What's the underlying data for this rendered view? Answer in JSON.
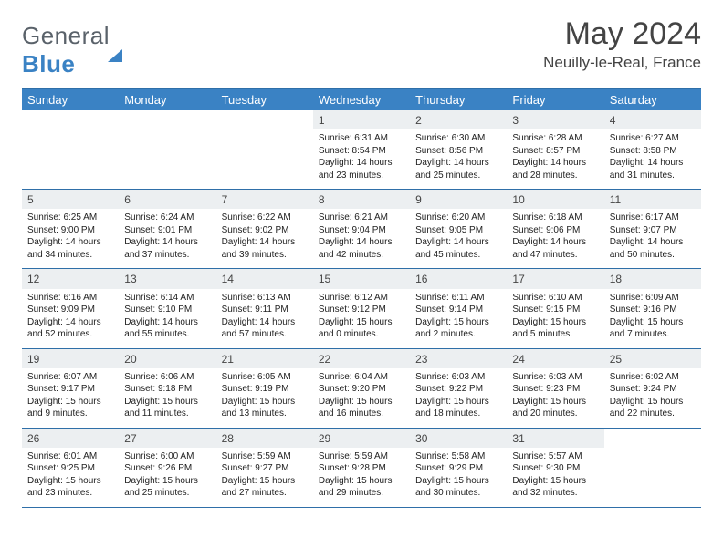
{
  "brand": {
    "part1": "General",
    "part2": "Blue"
  },
  "title": "May 2024",
  "location": "Neuilly-le-Real, France",
  "dayHeaders": [
    "Sunday",
    "Monday",
    "Tuesday",
    "Wednesday",
    "Thursday",
    "Friday",
    "Saturday"
  ],
  "colors": {
    "headerBg": "#3a82c4",
    "borderBlue": "#2f6fa8",
    "dayNumBg": "#eceff1"
  },
  "weeks": [
    [
      {
        "empty": true
      },
      {
        "empty": true
      },
      {
        "empty": true
      },
      {
        "n": "1",
        "sr": "6:31 AM",
        "ss": "8:54 PM",
        "dl": "14 hours and 23 minutes."
      },
      {
        "n": "2",
        "sr": "6:30 AM",
        "ss": "8:56 PM",
        "dl": "14 hours and 25 minutes."
      },
      {
        "n": "3",
        "sr": "6:28 AM",
        "ss": "8:57 PM",
        "dl": "14 hours and 28 minutes."
      },
      {
        "n": "4",
        "sr": "6:27 AM",
        "ss": "8:58 PM",
        "dl": "14 hours and 31 minutes."
      }
    ],
    [
      {
        "n": "5",
        "sr": "6:25 AM",
        "ss": "9:00 PM",
        "dl": "14 hours and 34 minutes."
      },
      {
        "n": "6",
        "sr": "6:24 AM",
        "ss": "9:01 PM",
        "dl": "14 hours and 37 minutes."
      },
      {
        "n": "7",
        "sr": "6:22 AM",
        "ss": "9:02 PM",
        "dl": "14 hours and 39 minutes."
      },
      {
        "n": "8",
        "sr": "6:21 AM",
        "ss": "9:04 PM",
        "dl": "14 hours and 42 minutes."
      },
      {
        "n": "9",
        "sr": "6:20 AM",
        "ss": "9:05 PM",
        "dl": "14 hours and 45 minutes."
      },
      {
        "n": "10",
        "sr": "6:18 AM",
        "ss": "9:06 PM",
        "dl": "14 hours and 47 minutes."
      },
      {
        "n": "11",
        "sr": "6:17 AM",
        "ss": "9:07 PM",
        "dl": "14 hours and 50 minutes."
      }
    ],
    [
      {
        "n": "12",
        "sr": "6:16 AM",
        "ss": "9:09 PM",
        "dl": "14 hours and 52 minutes."
      },
      {
        "n": "13",
        "sr": "6:14 AM",
        "ss": "9:10 PM",
        "dl": "14 hours and 55 minutes."
      },
      {
        "n": "14",
        "sr": "6:13 AM",
        "ss": "9:11 PM",
        "dl": "14 hours and 57 minutes."
      },
      {
        "n": "15",
        "sr": "6:12 AM",
        "ss": "9:12 PM",
        "dl": "15 hours and 0 minutes."
      },
      {
        "n": "16",
        "sr": "6:11 AM",
        "ss": "9:14 PM",
        "dl": "15 hours and 2 minutes."
      },
      {
        "n": "17",
        "sr": "6:10 AM",
        "ss": "9:15 PM",
        "dl": "15 hours and 5 minutes."
      },
      {
        "n": "18",
        "sr": "6:09 AM",
        "ss": "9:16 PM",
        "dl": "15 hours and 7 minutes."
      }
    ],
    [
      {
        "n": "19",
        "sr": "6:07 AM",
        "ss": "9:17 PM",
        "dl": "15 hours and 9 minutes."
      },
      {
        "n": "20",
        "sr": "6:06 AM",
        "ss": "9:18 PM",
        "dl": "15 hours and 11 minutes."
      },
      {
        "n": "21",
        "sr": "6:05 AM",
        "ss": "9:19 PM",
        "dl": "15 hours and 13 minutes."
      },
      {
        "n": "22",
        "sr": "6:04 AM",
        "ss": "9:20 PM",
        "dl": "15 hours and 16 minutes."
      },
      {
        "n": "23",
        "sr": "6:03 AM",
        "ss": "9:22 PM",
        "dl": "15 hours and 18 minutes."
      },
      {
        "n": "24",
        "sr": "6:03 AM",
        "ss": "9:23 PM",
        "dl": "15 hours and 20 minutes."
      },
      {
        "n": "25",
        "sr": "6:02 AM",
        "ss": "9:24 PM",
        "dl": "15 hours and 22 minutes."
      }
    ],
    [
      {
        "n": "26",
        "sr": "6:01 AM",
        "ss": "9:25 PM",
        "dl": "15 hours and 23 minutes."
      },
      {
        "n": "27",
        "sr": "6:00 AM",
        "ss": "9:26 PM",
        "dl": "15 hours and 25 minutes."
      },
      {
        "n": "28",
        "sr": "5:59 AM",
        "ss": "9:27 PM",
        "dl": "15 hours and 27 minutes."
      },
      {
        "n": "29",
        "sr": "5:59 AM",
        "ss": "9:28 PM",
        "dl": "15 hours and 29 minutes."
      },
      {
        "n": "30",
        "sr": "5:58 AM",
        "ss": "9:29 PM",
        "dl": "15 hours and 30 minutes."
      },
      {
        "n": "31",
        "sr": "5:57 AM",
        "ss": "9:30 PM",
        "dl": "15 hours and 32 minutes."
      },
      {
        "empty": true
      }
    ]
  ],
  "labels": {
    "sunrise": "Sunrise: ",
    "sunset": "Sunset: ",
    "daylight": "Daylight: "
  }
}
